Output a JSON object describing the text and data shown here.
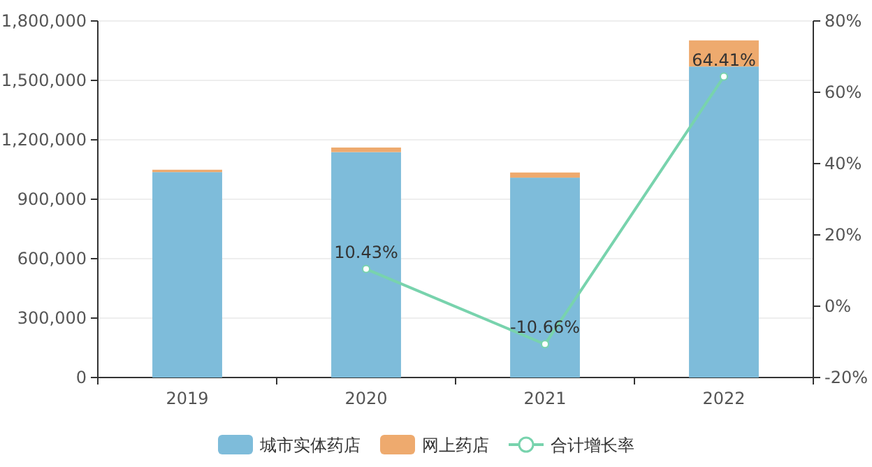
{
  "chart_data": {
    "type": "bar",
    "stacked": true,
    "categories": [
      "2019",
      "2020",
      "2021",
      "2022"
    ],
    "series": [
      {
        "name": "城市实体药店",
        "color": "#7ebcda",
        "values": [
          1037000,
          1138000,
          1009000,
          1570000
        ]
      },
      {
        "name": "网上药店",
        "color": "#eeaa6e",
        "values": [
          12000,
          23000,
          26000,
          132000
        ]
      },
      {
        "name": "合计增长率",
        "type": "line",
        "axis": "y2",
        "color": "#78d3ad",
        "marker": "circle",
        "values": [
          null,
          10.43,
          -10.66,
          64.41
        ],
        "value_labels": [
          null,
          "10.43%",
          "-10.66%",
          "64.41%"
        ]
      }
    ],
    "ylim": [
      0,
      1800000
    ],
    "yticks": [
      {
        "value": 0,
        "label": "0"
      },
      {
        "value": 300000,
        "label": "300,000"
      },
      {
        "value": 600000,
        "label": "600,000"
      },
      {
        "value": 900000,
        "label": "900,000"
      },
      {
        "value": 1200000,
        "label": "1,200,000"
      },
      {
        "value": 1500000,
        "label": "1,500,000"
      },
      {
        "value": 1800000,
        "label": "1,800,000"
      }
    ],
    "y2lim": [
      -20,
      80
    ],
    "y2ticks": [
      {
        "value": -20,
        "label": "-20%"
      },
      {
        "value": 0,
        "label": "0%"
      },
      {
        "value": 20,
        "label": "20%"
      },
      {
        "value": 40,
        "label": "40%"
      },
      {
        "value": 60,
        "label": "60%"
      },
      {
        "value": 80,
        "label": "80%"
      }
    ],
    "grid": "y",
    "legend": "bottom"
  }
}
